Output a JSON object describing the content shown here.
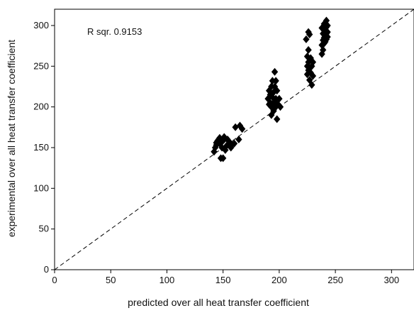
{
  "chart_data": {
    "type": "scatter",
    "xlabel": "predicted over all heat transfer coefficient",
    "ylabel": "experimental over all heat transfer coefficient",
    "xlim": [
      0,
      320
    ],
    "ylim": [
      0,
      320
    ],
    "x_ticks": [
      0,
      50,
      100,
      150,
      200,
      250,
      300
    ],
    "y_ticks": [
      0,
      50,
      100,
      150,
      200,
      250,
      300
    ],
    "grid": false,
    "annotation": "R sqr. 0.9153",
    "marker": "diamond",
    "marker_color": "#000000",
    "reference_line": {
      "style": "dashed",
      "from": [
        0,
        0
      ],
      "to": [
        320,
        320
      ]
    },
    "points": [
      {
        "x": 142,
        "y": 145
      },
      {
        "x": 143,
        "y": 150
      },
      {
        "x": 144,
        "y": 153
      },
      {
        "x": 144,
        "y": 156
      },
      {
        "x": 145,
        "y": 158
      },
      {
        "x": 146,
        "y": 160
      },
      {
        "x": 147,
        "y": 155
      },
      {
        "x": 147,
        "y": 162
      },
      {
        "x": 148,
        "y": 137
      },
      {
        "x": 149,
        "y": 150
      },
      {
        "x": 149,
        "y": 157
      },
      {
        "x": 150,
        "y": 137
      },
      {
        "x": 151,
        "y": 160
      },
      {
        "x": 151,
        "y": 163
      },
      {
        "x": 152,
        "y": 147
      },
      {
        "x": 153,
        "y": 152
      },
      {
        "x": 154,
        "y": 160
      },
      {
        "x": 155,
        "y": 158
      },
      {
        "x": 156,
        "y": 155
      },
      {
        "x": 157,
        "y": 150
      },
      {
        "x": 158,
        "y": 154
      },
      {
        "x": 160,
        "y": 155
      },
      {
        "x": 161,
        "y": 175
      },
      {
        "x": 164,
        "y": 160
      },
      {
        "x": 165,
        "y": 177
      },
      {
        "x": 167,
        "y": 173
      },
      {
        "x": 190,
        "y": 210
      },
      {
        "x": 191,
        "y": 220
      },
      {
        "x": 191,
        "y": 203
      },
      {
        "x": 192,
        "y": 215
      },
      {
        "x": 192,
        "y": 205
      },
      {
        "x": 193,
        "y": 225
      },
      {
        "x": 193,
        "y": 190
      },
      {
        "x": 193,
        "y": 200
      },
      {
        "x": 194,
        "y": 232
      },
      {
        "x": 194,
        "y": 212
      },
      {
        "x": 195,
        "y": 218
      },
      {
        "x": 195,
        "y": 205
      },
      {
        "x": 195,
        "y": 195
      },
      {
        "x": 196,
        "y": 243
      },
      {
        "x": 196,
        "y": 225
      },
      {
        "x": 196,
        "y": 207
      },
      {
        "x": 197,
        "y": 232
      },
      {
        "x": 197,
        "y": 210
      },
      {
        "x": 197,
        "y": 200
      },
      {
        "x": 198,
        "y": 220
      },
      {
        "x": 198,
        "y": 185
      },
      {
        "x": 199,
        "y": 203
      },
      {
        "x": 200,
        "y": 210
      },
      {
        "x": 201,
        "y": 200
      },
      {
        "x": 224,
        "y": 283
      },
      {
        "x": 225,
        "y": 262
      },
      {
        "x": 225,
        "y": 250
      },
      {
        "x": 225,
        "y": 240
      },
      {
        "x": 226,
        "y": 292
      },
      {
        "x": 226,
        "y": 270
      },
      {
        "x": 226,
        "y": 255
      },
      {
        "x": 226,
        "y": 245
      },
      {
        "x": 227,
        "y": 289
      },
      {
        "x": 227,
        "y": 233
      },
      {
        "x": 227,
        "y": 248
      },
      {
        "x": 228,
        "y": 260
      },
      {
        "x": 228,
        "y": 242
      },
      {
        "x": 229,
        "y": 227
      },
      {
        "x": 229,
        "y": 250
      },
      {
        "x": 230,
        "y": 238
      },
      {
        "x": 230,
        "y": 255
      },
      {
        "x": 238,
        "y": 297
      },
      {
        "x": 238,
        "y": 276
      },
      {
        "x": 238,
        "y": 265
      },
      {
        "x": 239,
        "y": 290
      },
      {
        "x": 239,
        "y": 282
      },
      {
        "x": 239,
        "y": 270
      },
      {
        "x": 240,
        "y": 302
      },
      {
        "x": 240,
        "y": 285
      },
      {
        "x": 240,
        "y": 278
      },
      {
        "x": 241,
        "y": 295
      },
      {
        "x": 241,
        "y": 288
      },
      {
        "x": 241,
        "y": 280
      },
      {
        "x": 242,
        "y": 306
      },
      {
        "x": 242,
        "y": 298
      },
      {
        "x": 242,
        "y": 290
      },
      {
        "x": 242,
        "y": 283
      },
      {
        "x": 243,
        "y": 300
      },
      {
        "x": 243,
        "y": 292
      },
      {
        "x": 243,
        "y": 286
      }
    ]
  }
}
